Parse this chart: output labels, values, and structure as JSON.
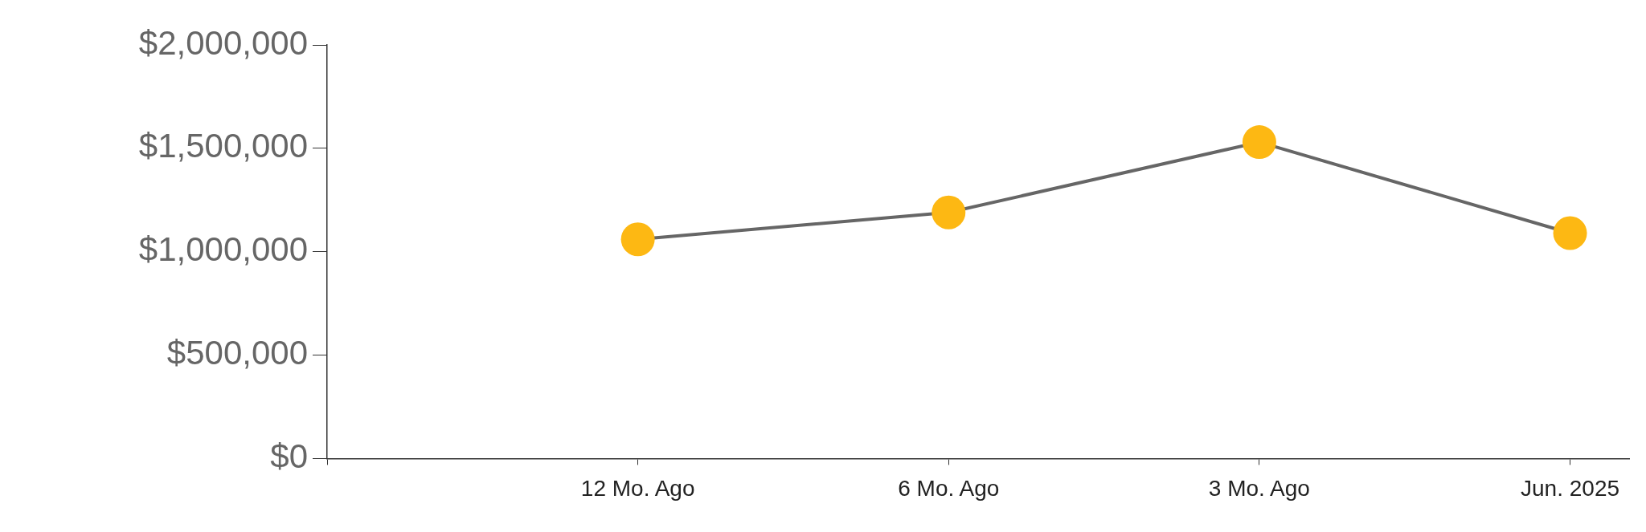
{
  "chart_data": {
    "type": "line",
    "categories": [
      null,
      "12 Mo. Ago",
      "6 Mo. Ago",
      "3 Mo. Ago",
      "Jun. 2025"
    ],
    "series": [
      {
        "color": "#fdb813",
        "values": [
          null,
          1060000,
          1190000,
          1530000,
          1090000
        ]
      }
    ],
    "ylim": [
      0,
      2000000
    ],
    "yticks": [
      {
        "value": 0,
        "label": "$0"
      },
      {
        "value": 500000,
        "label": "$500,000"
      },
      {
        "value": 1000000,
        "label": "$1,000,000"
      },
      {
        "value": 1500000,
        "label": "$1,500,000"
      },
      {
        "value": 2000000,
        "label": "$2,000,000"
      }
    ],
    "marker": "circle",
    "line_style": "solid",
    "grid": false,
    "legend": false
  }
}
